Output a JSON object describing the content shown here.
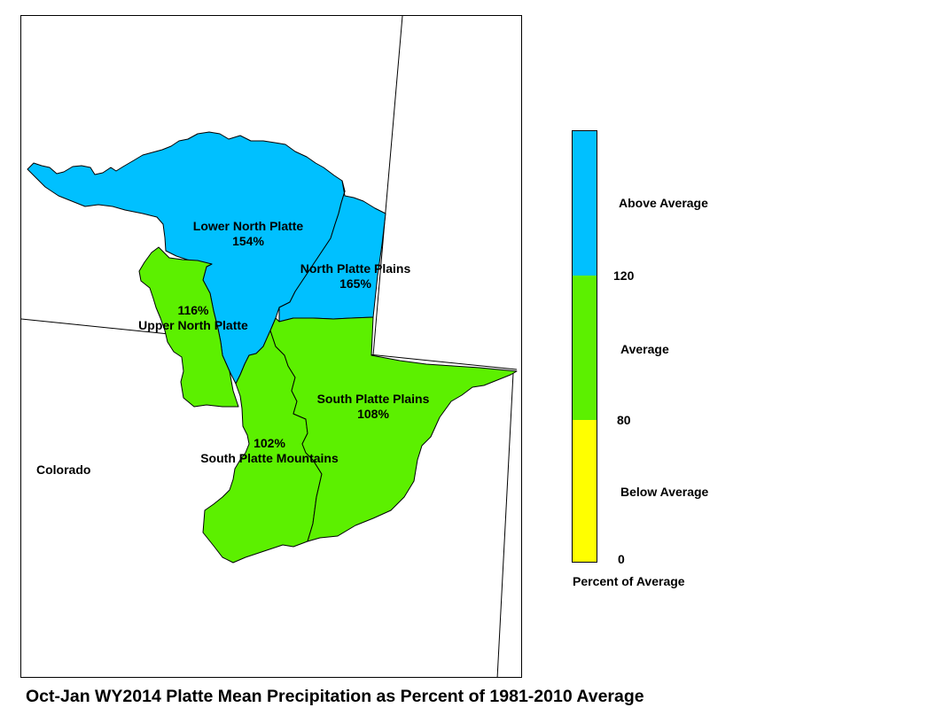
{
  "title": "Oct-Jan WY2014 Platte Mean Precipitation as Percent of 1981-2010 Average",
  "state_label": "Colorado",
  "colors": {
    "above": "#00c0ff",
    "average": "#5cf000",
    "below": "#ffff00",
    "boundary": "#000000"
  },
  "basins": [
    {
      "name": "Lower North Platte",
      "value": "154%",
      "category": "Above Average"
    },
    {
      "name": "North Platte Plains",
      "value": "165%",
      "category": "Above Average"
    },
    {
      "name": "Upper North Platte",
      "value": "116%",
      "category": "Average"
    },
    {
      "name": "South Platte Plains",
      "value": "108%",
      "category": "Average"
    },
    {
      "name": "South Platte Mountains",
      "value": "102%",
      "category": "Average"
    }
  ],
  "legend": {
    "title": "Percent of Average",
    "categories": [
      "Above Average",
      "Average",
      "Below Average"
    ],
    "breaks": [
      "120",
      "80",
      "0"
    ]
  }
}
